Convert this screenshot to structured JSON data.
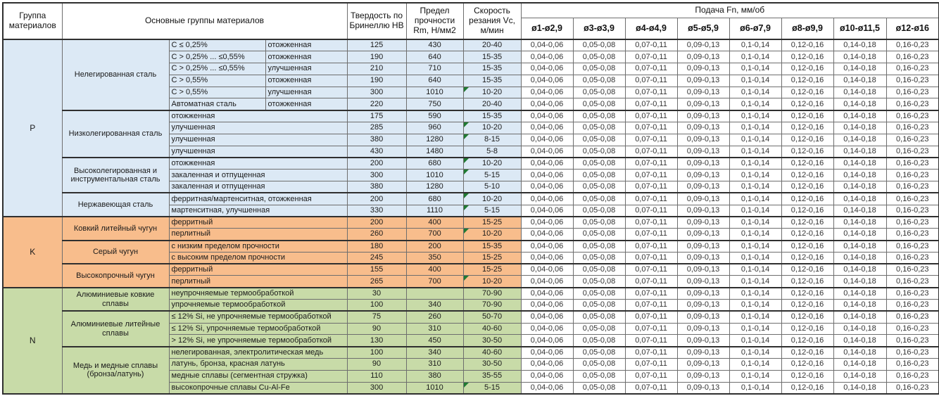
{
  "chart_data": {
    "type": "table",
    "header": {
      "group": "Группа материалов",
      "main_groups": "Основные группы материалов",
      "hardness": "Твердость по Бринеллю HB",
      "strength": "Предел прочности Rm, Н/мм2",
      "speed": "Скорость резания Vc, м/мин",
      "feed": "Подача Fn, мм/об",
      "diameters": [
        "ø1-ø2,9",
        "ø3-ø3,9",
        "ø4-ø4,9",
        "ø5-ø5,9",
        "ø6-ø7,9",
        "ø8-ø9,9",
        "ø10-ø11,5",
        "ø12-ø16"
      ]
    },
    "feed_values": [
      "0,04-0,06",
      "0,05-0,08",
      "0,07-0,11",
      "0,09-0,13",
      "0,1-0,14",
      "0,12-0,16",
      "0,14-0,18",
      "0,16-0,23"
    ],
    "colors": {
      "p_blue": "#dce9f5",
      "k_orange": "#f8bd8c",
      "n_green": "#c8dba8",
      "flag_green": "#1f7a32"
    },
    "groups": [
      {
        "code": "P",
        "class": "p",
        "subgroups": [
          {
            "name": "Нелегированная сталь",
            "rows": [
              {
                "c1": "C ≤ 0,25%",
                "c2": "отожженная",
                "hb": "125",
                "rm": "430",
                "vc": "20-40"
              },
              {
                "c1": "C > 0,25% ... ≤0,55%",
                "c2": "отожженная",
                "hb": "190",
                "rm": "640",
                "vc": "15-35"
              },
              {
                "c1": "C > 0,25% ... ≤0,55%",
                "c2": "улучшенная",
                "hb": "210",
                "rm": "710",
                "vc": "15-35"
              },
              {
                "c1": "C > 0,55%",
                "c2": "отожженная",
                "hb": "190",
                "rm": "640",
                "vc": "15-35"
              },
              {
                "c1": "C > 0,55%",
                "c2": "улучшенная",
                "hb": "300",
                "rm": "1010",
                "vc": "10-20",
                "flag": true
              },
              {
                "c1": "Автоматная сталь",
                "c2": "отожженная",
                "hb": "220",
                "rm": "750",
                "vc": "20-40"
              }
            ]
          },
          {
            "name": "Низколегированная сталь",
            "rows": [
              {
                "c": "отожженная",
                "hb": "175",
                "rm": "590",
                "vc": "15-35"
              },
              {
                "c": "улучшенная",
                "hb": "285",
                "rm": "960",
                "vc": "10-20",
                "flag": true
              },
              {
                "c": "улучшенная",
                "hb": "380",
                "rm": "1280",
                "vc": "8-15",
                "flag": true
              },
              {
                "c": "улучшенная",
                "hb": "430",
                "rm": "1480",
                "vc": "5-8"
              }
            ]
          },
          {
            "name": "Высоколегированная и инструментальная сталь",
            "rows": [
              {
                "c": "отожженная",
                "hb": "200",
                "rm": "680",
                "vc": "10-20",
                "flag": true
              },
              {
                "c": "закаленная и отпущенная",
                "hb": "300",
                "rm": "1010",
                "vc": "5-15",
                "flag": true
              },
              {
                "c": "закаленная и отпущенная",
                "hb": "380",
                "rm": "1280",
                "vc": "5-10"
              }
            ]
          },
          {
            "name": "Нержавеющая сталь",
            "rows": [
              {
                "c": "ферритная/мартенситная, отожженная",
                "hb": "200",
                "rm": "680",
                "vc": "10-20",
                "flag": true
              },
              {
                "c": "мартенситная, улучшенная",
                "hb": "330",
                "rm": "1110",
                "vc": "5-15",
                "flag": true
              }
            ]
          }
        ]
      },
      {
        "code": "K",
        "class": "k",
        "subgroups": [
          {
            "name": "Ковкий литейный чугун",
            "rows": [
              {
                "c": "ферритный",
                "hb": "200",
                "rm": "400",
                "vc": "15-25"
              },
              {
                "c": "перлитный",
                "hb": "260",
                "rm": "700",
                "vc": "10-20",
                "flag": true
              }
            ]
          },
          {
            "name": "Серый чугун",
            "rows": [
              {
                "c": "с низким пределом прочности",
                "hb": "180",
                "rm": "200",
                "vc": "15-35"
              },
              {
                "c": "с высоким пределом прочности",
                "hb": "245",
                "rm": "350",
                "vc": "15-25"
              }
            ]
          },
          {
            "name": "Высокопрочный чугун",
            "rows": [
              {
                "c": "ферритный",
                "hb": "155",
                "rm": "400",
                "vc": "15-25"
              },
              {
                "c": "перлитный",
                "hb": "265",
                "rm": "700",
                "vc": "10-20",
                "flag": true
              }
            ]
          }
        ]
      },
      {
        "code": "N",
        "class": "n",
        "subgroups": [
          {
            "name": "Алюминиевые ковкие сплавы",
            "rows": [
              {
                "c": "неупрочняемые термообработкой",
                "hb": "30",
                "rm": "",
                "vc": "70-90"
              },
              {
                "c": "упрочняемые термообработкой",
                "hb": "100",
                "rm": "340",
                "vc": "70-90"
              }
            ]
          },
          {
            "name": "Алюминиевые литейные сплавы",
            "rows": [
              {
                "c": "≤ 12% Si, не упрочняемые термообработкой",
                "hb": "75",
                "rm": "260",
                "vc": "50-70"
              },
              {
                "c": "≤ 12% Si, упрочняемые термообработкой",
                "hb": "90",
                "rm": "310",
                "vc": "40-60"
              },
              {
                "c": "> 12% Si, не упрочняемые термообработкой",
                "hb": "130",
                "rm": "450",
                "vc": "30-50"
              }
            ]
          },
          {
            "name": "Медь и медные сплавы (бронза/латунь)",
            "rows": [
              {
                "c": "нелегированная, электролитическая медь",
                "hb": "100",
                "rm": "340",
                "vc": "40-60"
              },
              {
                "c": "латунь, бронза, красная латунь",
                "hb": "90",
                "rm": "310",
                "vc": "30-50"
              },
              {
                "c": "медные сплавы (сегментная стружка)",
                "hb": "110",
                "rm": "380",
                "vc": "35-55"
              },
              {
                "c": "высокопрочные сплавы Cu-Al-Fe",
                "hb": "300",
                "rm": "1010",
                "vc": "5-15",
                "flag": true
              }
            ]
          }
        ]
      }
    ]
  }
}
